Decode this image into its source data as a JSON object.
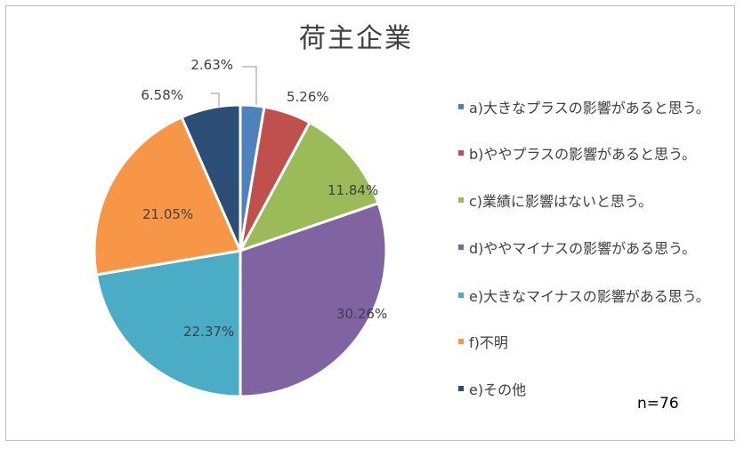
{
  "chart_data": {
    "type": "pie",
    "title": "荷主企業",
    "categories": [
      "a)大きなプラスの影響があると思う。",
      "b)ややプラスの影響があると思う。",
      "c)業績に影響はないと思う。",
      "d)ややマイナスの影響がある思う。",
      "e)大きなマイナスの影響がある思う。",
      "f)不明",
      "e)その他"
    ],
    "values": [
      2.63,
      5.26,
      11.84,
      30.26,
      22.37,
      21.05,
      6.58
    ],
    "data_labels": [
      "2.63%",
      "5.26%",
      "11.84%",
      "30.26%",
      "22.37%",
      "21.05%",
      "6.58%"
    ],
    "colors": [
      "#4f81bd",
      "#c0504d",
      "#9bbb59",
      "#8064a2",
      "#4bacc6",
      "#f79646",
      "#2c4d75"
    ],
    "legend_position": "right",
    "note": "n=76"
  }
}
